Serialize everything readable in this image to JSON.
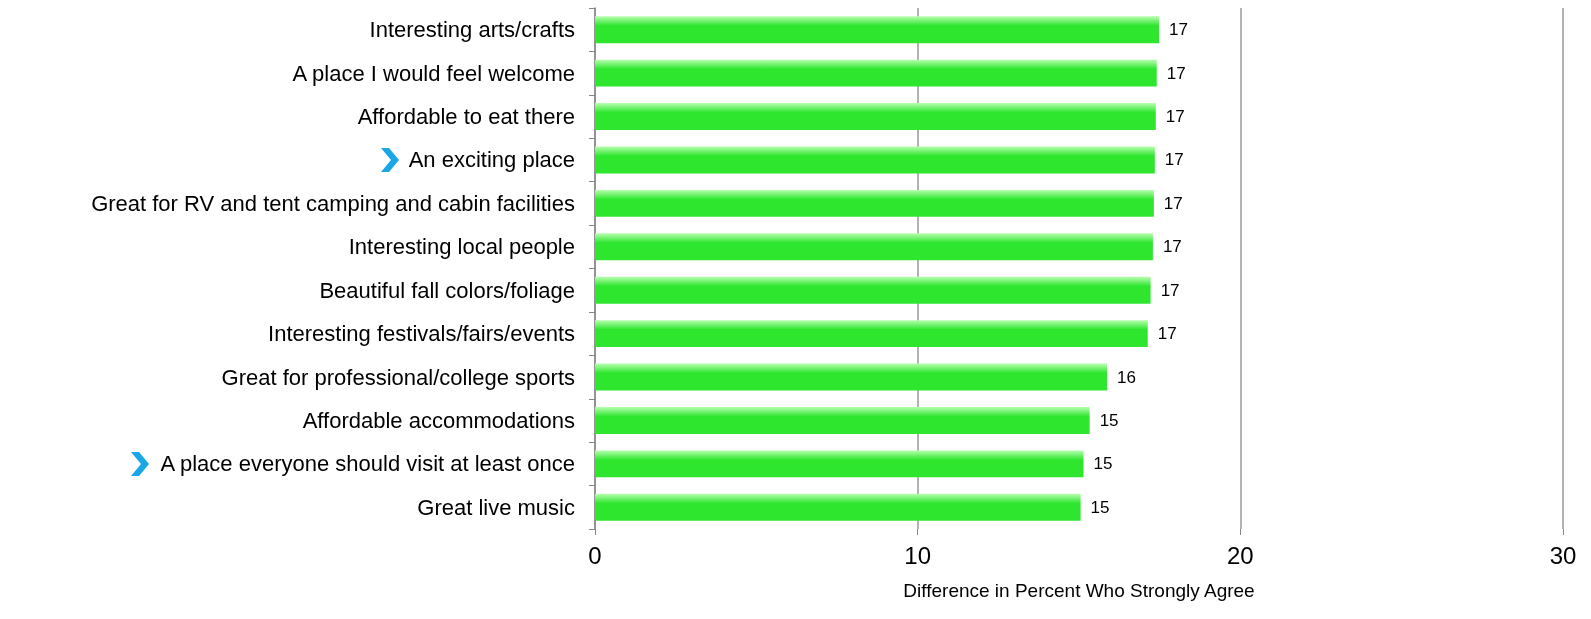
{
  "chart_data": {
    "type": "bar",
    "orientation": "horizontal",
    "xlabel": "Difference in Percent Who Strongly Agree",
    "categories": [
      "Interesting arts/crafts",
      "A place I would feel welcome",
      "Affordable to eat there",
      "An exciting place",
      "Great for RV and tent camping and cabin facilities",
      "Interesting local people",
      "Beautiful fall colors/foliage",
      "Interesting festivals/fairs/events",
      "Great for professional/college sports",
      "Affordable accommodations",
      "A place everyone should visit at least once",
      "Great live music"
    ],
    "values": [
      17.48,
      17.41,
      17.38,
      17.35,
      17.32,
      17.29,
      17.22,
      17.13,
      15.87,
      15.33,
      15.14,
      15.05
    ],
    "value_labels": [
      "17",
      "17",
      "17",
      "17",
      "17",
      "17",
      "17",
      "17",
      "16",
      "15",
      "15",
      "15"
    ],
    "color": "#2ee62e",
    "xlim": [
      0,
      30
    ],
    "xticks": [
      0,
      10,
      20,
      30
    ],
    "grid": "x"
  }
}
